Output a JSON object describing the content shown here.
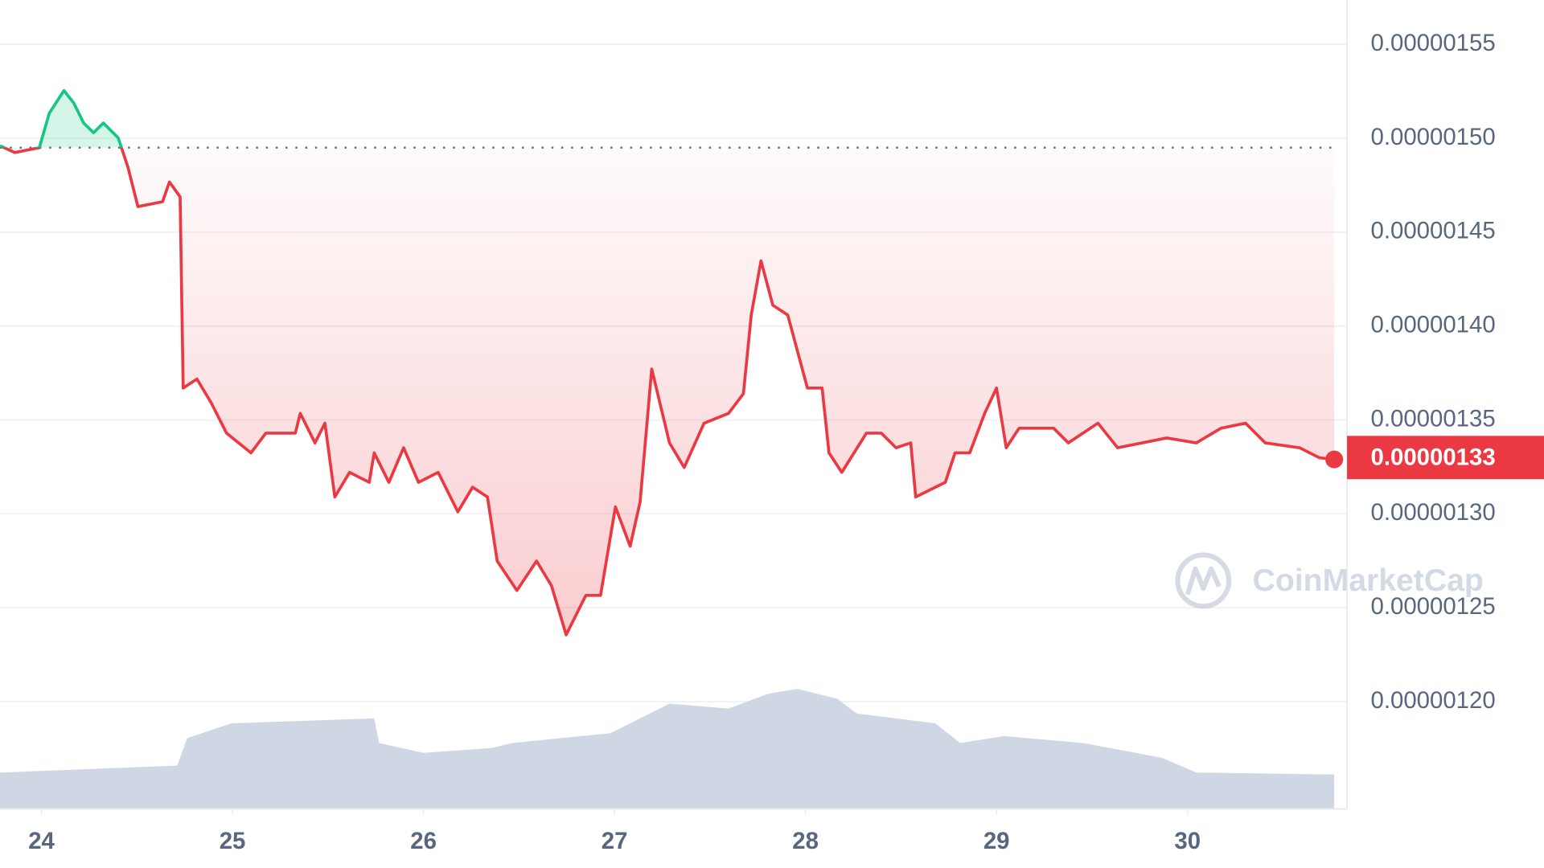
{
  "chart_data": {
    "type": "line",
    "watermark": "CoinMarketCap",
    "xlim": [
      23.783,
      30.794
    ],
    "xticks": [
      24,
      25,
      26,
      27,
      28,
      29,
      30
    ],
    "ylim": [
      1.1429e-06,
      1.5736e-06
    ],
    "yticks": [
      {
        "value": 1.55e-06,
        "label": "0.00000155"
      },
      {
        "value": 1.5e-06,
        "label": "0.00000150"
      },
      {
        "value": 1.45e-06,
        "label": "0.00000145"
      },
      {
        "value": 1.4e-06,
        "label": "0.00000140"
      },
      {
        "value": 1.35e-06,
        "label": "0.00000135"
      },
      {
        "value": 1.3e-06,
        "label": "0.00000130"
      },
      {
        "value": 1.25e-06,
        "label": "0.00000125"
      },
      {
        "value": 1.2e-06,
        "label": "0.00000120"
      }
    ],
    "y2lim": [
      0,
      822
    ],
    "grid": true,
    "baseline": 1.495e-06,
    "up_color": "#16c784",
    "down_color": "#ea3943",
    "last_price": {
      "value": 1.33e-06,
      "label": "0.00000133"
    },
    "series": [
      {
        "name": "Price",
        "color": "#ea3943",
        "x": [
          23.783,
          23.86,
          23.989,
          24.041,
          24.118,
          24.17,
          24.221,
          24.273,
          24.324,
          24.402,
          24.453,
          24.505,
          24.634,
          24.67,
          24.726,
          24.742,
          24.814,
          24.891,
          24.969,
          25.097,
          25.175,
          25.329,
          25.355,
          25.432,
          25.484,
          25.536,
          25.613,
          25.716,
          25.742,
          25.819,
          25.896,
          25.974,
          26.077,
          26.18,
          26.257,
          26.335,
          26.386,
          26.489,
          26.592,
          26.67,
          26.747,
          26.85,
          26.927,
          27.005,
          27.082,
          27.134,
          27.195,
          27.288,
          27.365,
          27.469,
          27.597,
          27.675,
          27.716,
          27.767,
          27.829,
          27.907,
          28.01,
          28.087,
          28.123,
          28.19,
          28.319,
          28.397,
          28.474,
          28.551,
          28.577,
          28.732,
          28.783,
          28.86,
          28.938,
          29.0,
          29.051,
          29.118,
          29.299,
          29.376,
          29.531,
          29.634,
          29.762,
          29.891,
          30.046,
          30.175,
          30.304,
          30.407,
          30.587,
          30.69,
          30.768
        ],
        "values": [
          1.496e-06,
          1.4924e-06,
          1.495e-06,
          1.5133e-06,
          1.5254e-06,
          1.5186e-06,
          1.5081e-06,
          1.5029e-06,
          1.5081e-06,
          1.5002e-06,
          1.4845e-06,
          1.4636e-06,
          1.4662e-06,
          1.4767e-06,
          1.4688e-06,
          1.367e-06,
          1.3718e-06,
          1.3587e-06,
          1.343e-06,
          1.3325e-06,
          1.343e-06,
          1.343e-06,
          1.3535e-06,
          1.3378e-06,
          1.3483e-06,
          1.309e-06,
          1.3221e-06,
          1.3168e-06,
          1.3325e-06,
          1.3168e-06,
          1.3352e-06,
          1.3168e-06,
          1.3221e-06,
          1.3011e-06,
          1.3142e-06,
          1.309e-06,
          1.2749e-06,
          1.2592e-06,
          1.2749e-06,
          1.2618e-06,
          1.2356e-06,
          1.2566e-06,
          1.2566e-06,
          1.3037e-06,
          1.2828e-06,
          1.3063e-06,
          1.3771e-06,
          1.3378e-06,
          1.3247e-06,
          1.3483e-06,
          1.3535e-06,
          1.364e-06,
          1.4059e-06,
          1.4347e-06,
          1.4111e-06,
          1.4059e-06,
          1.367e-06,
          1.367e-06,
          1.3325e-06,
          1.3221e-06,
          1.343e-06,
          1.343e-06,
          1.3352e-06,
          1.3378e-06,
          1.309e-06,
          1.3168e-06,
          1.3325e-06,
          1.3325e-06,
          1.3535e-06,
          1.367e-06,
          1.3352e-06,
          1.3456e-06,
          1.3456e-06,
          1.3378e-06,
          1.3483e-06,
          1.3352e-06,
          1.3378e-06,
          1.3404e-06,
          1.3378e-06,
          1.3456e-06,
          1.3483e-06,
          1.3378e-06,
          1.3352e-06,
          1.3299e-06,
          1.329e-06
        ]
      },
      {
        "name": "Volume",
        "color": "#cfd6e4",
        "axis": "y2",
        "x": [
          23.783,
          24.711,
          24.763,
          24.995,
          25.742,
          25.768,
          26.0,
          26.361,
          26.464,
          26.979,
          27.185,
          27.288,
          27.597,
          27.804,
          27.958,
          28.165,
          28.268,
          28.68,
          28.809,
          29.041,
          29.453,
          29.866,
          30.046,
          30.768
        ],
        "values": [
          37,
          44,
          72,
          87,
          92,
          67,
          57,
          62,
          67,
          77,
          97,
          107,
          102,
          117,
          122,
          112,
          97,
          87,
          67,
          74,
          67,
          52,
          37,
          35
        ]
      }
    ]
  }
}
